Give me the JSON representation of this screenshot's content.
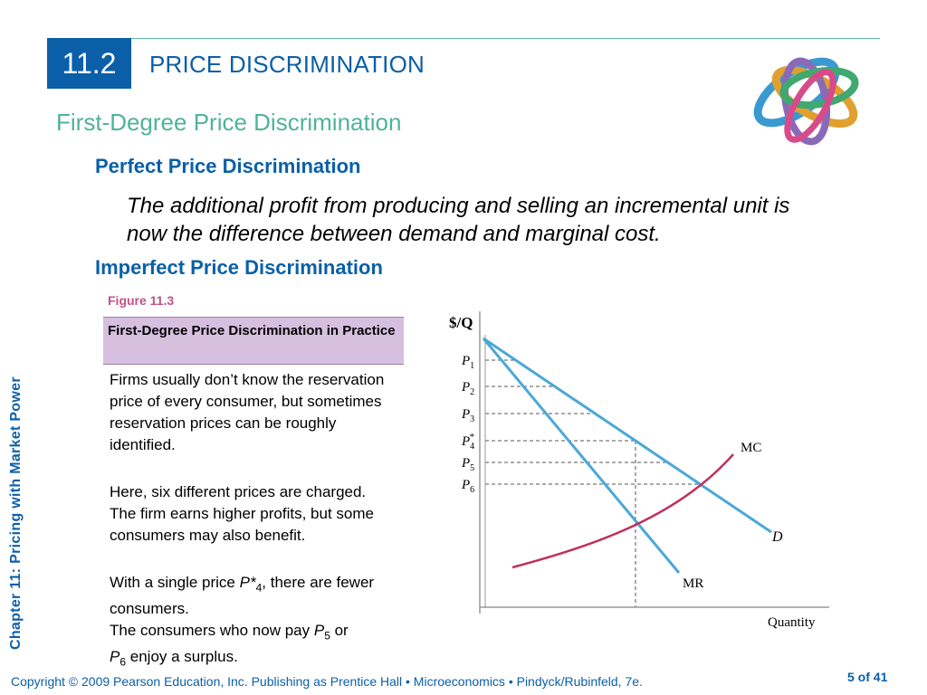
{
  "header": {
    "section_number": "11.2",
    "section_title": "PRICE DISCRIMINATION",
    "subtitle": "First-Degree Price Discrimination"
  },
  "content": {
    "heading1": "Perfect Price Discrimination",
    "italic_text": "The additional profit from producing and selling an incremental unit is now the difference between demand and marginal cost.",
    "heading2": "Imperfect Price Discrimination",
    "figure_label": "Figure 11.3",
    "figure_caption": "First-Degree Price Discrimination in Practice",
    "para1": "Firms usually don’t know the reservation price of every consumer, but sometimes reservation prices can be roughly identified.",
    "para2": "Here, six different prices are charged. The firm earns higher profits, but some consumers may also benefit.",
    "para3": {
      "before": "With a single price ",
      "price": "P*",
      "sub": "4",
      "after": ", there are fewer consumers."
    },
    "para4": {
      "before": "The consumers who now pay ",
      "p5": "P",
      "p5_sub": "5",
      "middle": " or ",
      "p6": "P",
      "p6_sub": "6",
      "after": " enjoy a surplus."
    }
  },
  "sidebar": {
    "chapter_text": "Chapter 11: Pricing with Market Power"
  },
  "footer": {
    "copyright": "Copyright © 2009 Pearson Education, Inc. Publishing as Prentice Hall  •  Microeconomics  •  Pindyck/Rubinfeld, 7e.",
    "page": "5 of 41"
  },
  "graph": {
    "y_axis_label": "$/Q",
    "x_axis_label": "Quantity",
    "price_labels": [
      {
        "base": "P",
        "sub": "1",
        "star": ""
      },
      {
        "base": "P",
        "sub": "2",
        "star": ""
      },
      {
        "base": "P",
        "sub": "3",
        "star": ""
      },
      {
        "base": "P",
        "sub": "4",
        "star": "*"
      },
      {
        "base": "P",
        "sub": "5",
        "star": ""
      },
      {
        "base": "P",
        "sub": "6",
        "star": ""
      }
    ],
    "curve_labels": {
      "mc": "MC",
      "d": "D",
      "mr": "MR"
    },
    "colors": {
      "demand": "#4aa8d8",
      "mr": "#4aa8d8",
      "mc": "#c0305a",
      "axis": "#999999",
      "dash": "#555555"
    }
  }
}
